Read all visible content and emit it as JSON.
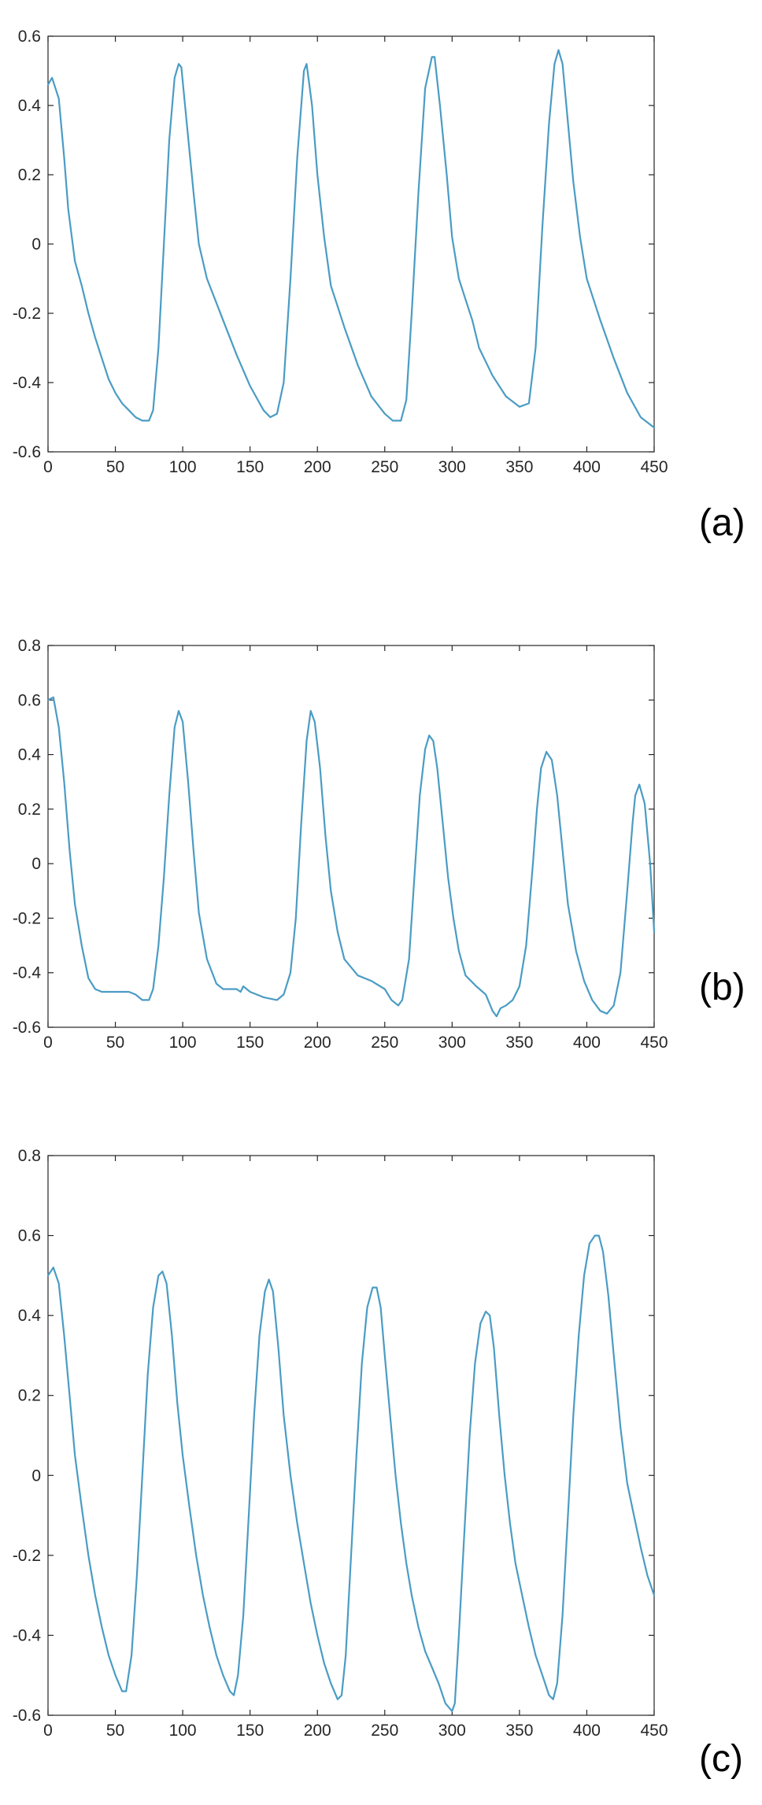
{
  "colors": {
    "line": "#4a9cc4",
    "axis": "#262626",
    "background": "#ffffff"
  },
  "chart_data": [
    {
      "type": "line",
      "panel_label": "(a)",
      "title": "",
      "xlabel": "",
      "ylabel": "",
      "xlim": [
        0,
        450
      ],
      "ylim": [
        -0.6,
        0.6
      ],
      "xticks": [
        0,
        50,
        100,
        150,
        200,
        250,
        300,
        350,
        400,
        450
      ],
      "yticks": [
        -0.6,
        -0.4,
        -0.2,
        0,
        0.2,
        0.4,
        0.6
      ],
      "grid": false,
      "series": [
        {
          "x": [
            0,
            3,
            8,
            12,
            15,
            20,
            25,
            30,
            35,
            40,
            45,
            50,
            55,
            60,
            65,
            70,
            75,
            78,
            82,
            86,
            90,
            94,
            97,
            99,
            103,
            108,
            112,
            118,
            125,
            130,
            140,
            150,
            160,
            165,
            170,
            175,
            180,
            185,
            190,
            192,
            196,
            200,
            205,
            210,
            215,
            220,
            230,
            240,
            250,
            256,
            262,
            266,
            270,
            275,
            280,
            285,
            287,
            291,
            296,
            300,
            305,
            310,
            315,
            320,
            330,
            340,
            350,
            357,
            362,
            367,
            372,
            376,
            379,
            382,
            386,
            390,
            395,
            400,
            410,
            420,
            430,
            440,
            450
          ],
          "y": [
            0.46,
            0.48,
            0.42,
            0.25,
            0.1,
            -0.05,
            -0.12,
            -0.2,
            -0.27,
            -0.33,
            -0.39,
            -0.43,
            -0.46,
            -0.48,
            -0.5,
            -0.51,
            -0.51,
            -0.48,
            -0.3,
            0.0,
            0.3,
            0.48,
            0.52,
            0.51,
            0.35,
            0.15,
            0.0,
            -0.1,
            -0.17,
            -0.22,
            -0.32,
            -0.41,
            -0.48,
            -0.5,
            -0.49,
            -0.4,
            -0.1,
            0.25,
            0.5,
            0.52,
            0.4,
            0.2,
            0.02,
            -0.12,
            -0.18,
            -0.24,
            -0.35,
            -0.44,
            -0.49,
            -0.51,
            -0.51,
            -0.45,
            -0.2,
            0.15,
            0.45,
            0.54,
            0.54,
            0.4,
            0.2,
            0.02,
            -0.1,
            -0.16,
            -0.22,
            -0.3,
            -0.38,
            -0.44,
            -0.47,
            -0.46,
            -0.3,
            0.05,
            0.35,
            0.52,
            0.56,
            0.52,
            0.35,
            0.18,
            0.02,
            -0.1,
            -0.22,
            -0.33,
            -0.43,
            -0.5,
            -0.53
          ]
        }
      ]
    },
    {
      "type": "line",
      "panel_label": "(b)",
      "title": "",
      "xlabel": "",
      "ylabel": "",
      "xlim": [
        0,
        450
      ],
      "ylim": [
        -0.6,
        0.8
      ],
      "xticks": [
        0,
        50,
        100,
        150,
        200,
        250,
        300,
        350,
        400,
        450
      ],
      "yticks": [
        -0.6,
        -0.4,
        -0.2,
        0,
        0.2,
        0.4,
        0.6,
        0.8
      ],
      "grid": false,
      "series": [
        {
          "x": [
            0,
            4,
            8,
            12,
            16,
            20,
            25,
            30,
            35,
            40,
            50,
            60,
            65,
            70,
            75,
            78,
            82,
            86,
            90,
            94,
            97,
            100,
            104,
            108,
            112,
            118,
            125,
            130,
            140,
            143,
            145,
            150,
            160,
            170,
            175,
            180,
            184,
            188,
            192,
            195,
            198,
            202,
            206,
            210,
            215,
            220,
            230,
            240,
            250,
            255,
            260,
            263,
            268,
            272,
            276,
            280,
            283,
            286,
            289,
            293,
            297,
            301,
            305,
            310,
            318,
            325,
            330,
            333,
            336,
            340,
            345,
            350,
            355,
            360,
            363,
            366,
            370,
            374,
            378,
            382,
            386,
            392,
            398,
            404,
            410,
            415,
            420,
            425,
            430,
            434,
            436,
            439,
            443,
            447,
            450
          ],
          "y": [
            0.6,
            0.61,
            0.5,
            0.3,
            0.05,
            -0.15,
            -0.3,
            -0.42,
            -0.46,
            -0.47,
            -0.47,
            -0.47,
            -0.48,
            -0.5,
            -0.5,
            -0.46,
            -0.3,
            -0.05,
            0.25,
            0.5,
            0.56,
            0.52,
            0.3,
            0.05,
            -0.18,
            -0.35,
            -0.44,
            -0.46,
            -0.46,
            -0.47,
            -0.45,
            -0.47,
            -0.49,
            -0.5,
            -0.48,
            -0.4,
            -0.2,
            0.15,
            0.45,
            0.56,
            0.52,
            0.35,
            0.1,
            -0.1,
            -0.25,
            -0.35,
            -0.41,
            -0.43,
            -0.46,
            -0.5,
            -0.52,
            -0.5,
            -0.35,
            -0.05,
            0.25,
            0.42,
            0.47,
            0.45,
            0.35,
            0.15,
            -0.05,
            -0.2,
            -0.32,
            -0.41,
            -0.45,
            -0.48,
            -0.54,
            -0.56,
            -0.53,
            -0.52,
            -0.5,
            -0.45,
            -0.3,
            0.0,
            0.2,
            0.35,
            0.41,
            0.38,
            0.25,
            0.05,
            -0.15,
            -0.32,
            -0.43,
            -0.5,
            -0.54,
            -0.55,
            -0.52,
            -0.4,
            -0.1,
            0.15,
            0.25,
            0.29,
            0.22,
            0.0,
            -0.25
          ]
        }
      ]
    },
    {
      "type": "line",
      "panel_label": "(c)",
      "title": "",
      "xlabel": "",
      "ylabel": "",
      "xlim": [
        0,
        450
      ],
      "ylim": [
        -0.6,
        0.8
      ],
      "xticks": [
        0,
        50,
        100,
        150,
        200,
        250,
        300,
        350,
        400,
        450
      ],
      "yticks": [
        -0.6,
        -0.4,
        -0.2,
        0,
        0.2,
        0.4,
        0.6,
        0.8
      ],
      "grid": false,
      "series": [
        {
          "x": [
            0,
            4,
            8,
            12,
            16,
            20,
            25,
            30,
            35,
            40,
            45,
            50,
            55,
            58,
            62,
            66,
            70,
            74,
            78,
            82,
            85,
            88,
            92,
            96,
            100,
            105,
            110,
            115,
            120,
            125,
            130,
            135,
            138,
            141,
            145,
            149,
            153,
            157,
            161,
            164,
            167,
            171,
            175,
            180,
            185,
            190,
            195,
            200,
            205,
            210,
            215,
            218,
            221,
            225,
            229,
            233,
            237,
            241,
            244,
            247,
            250,
            254,
            258,
            262,
            266,
            270,
            275,
            280,
            285,
            290,
            295,
            300,
            302,
            305,
            309,
            313,
            317,
            321,
            325,
            328,
            331,
            335,
            339,
            343,
            347,
            352,
            357,
            362,
            367,
            372,
            375,
            378,
            382,
            386,
            390,
            394,
            398,
            402,
            406,
            409,
            412,
            416,
            420,
            425,
            430,
            435,
            440,
            445,
            450
          ],
          "y": [
            0.5,
            0.52,
            0.48,
            0.35,
            0.2,
            0.05,
            -0.08,
            -0.2,
            -0.3,
            -0.38,
            -0.45,
            -0.5,
            -0.54,
            -0.54,
            -0.45,
            -0.25,
            0.0,
            0.25,
            0.42,
            0.5,
            0.51,
            0.48,
            0.35,
            0.18,
            0.05,
            -0.08,
            -0.2,
            -0.3,
            -0.38,
            -0.45,
            -0.5,
            -0.54,
            -0.55,
            -0.5,
            -0.35,
            -0.1,
            0.15,
            0.35,
            0.46,
            0.49,
            0.46,
            0.32,
            0.15,
            0.0,
            -0.12,
            -0.22,
            -0.32,
            -0.4,
            -0.47,
            -0.52,
            -0.56,
            -0.55,
            -0.45,
            -0.2,
            0.05,
            0.28,
            0.42,
            0.47,
            0.47,
            0.42,
            0.3,
            0.15,
            0.0,
            -0.12,
            -0.22,
            -0.3,
            -0.38,
            -0.44,
            -0.48,
            -0.52,
            -0.57,
            -0.59,
            -0.57,
            -0.4,
            -0.15,
            0.1,
            0.28,
            0.38,
            0.41,
            0.4,
            0.32,
            0.15,
            0.0,
            -0.12,
            -0.22,
            -0.3,
            -0.38,
            -0.45,
            -0.5,
            -0.55,
            -0.56,
            -0.52,
            -0.35,
            -0.1,
            0.15,
            0.35,
            0.5,
            0.58,
            0.6,
            0.6,
            0.56,
            0.45,
            0.3,
            0.12,
            -0.02,
            -0.1,
            -0.18,
            -0.25,
            -0.3
          ]
        }
      ]
    }
  ]
}
